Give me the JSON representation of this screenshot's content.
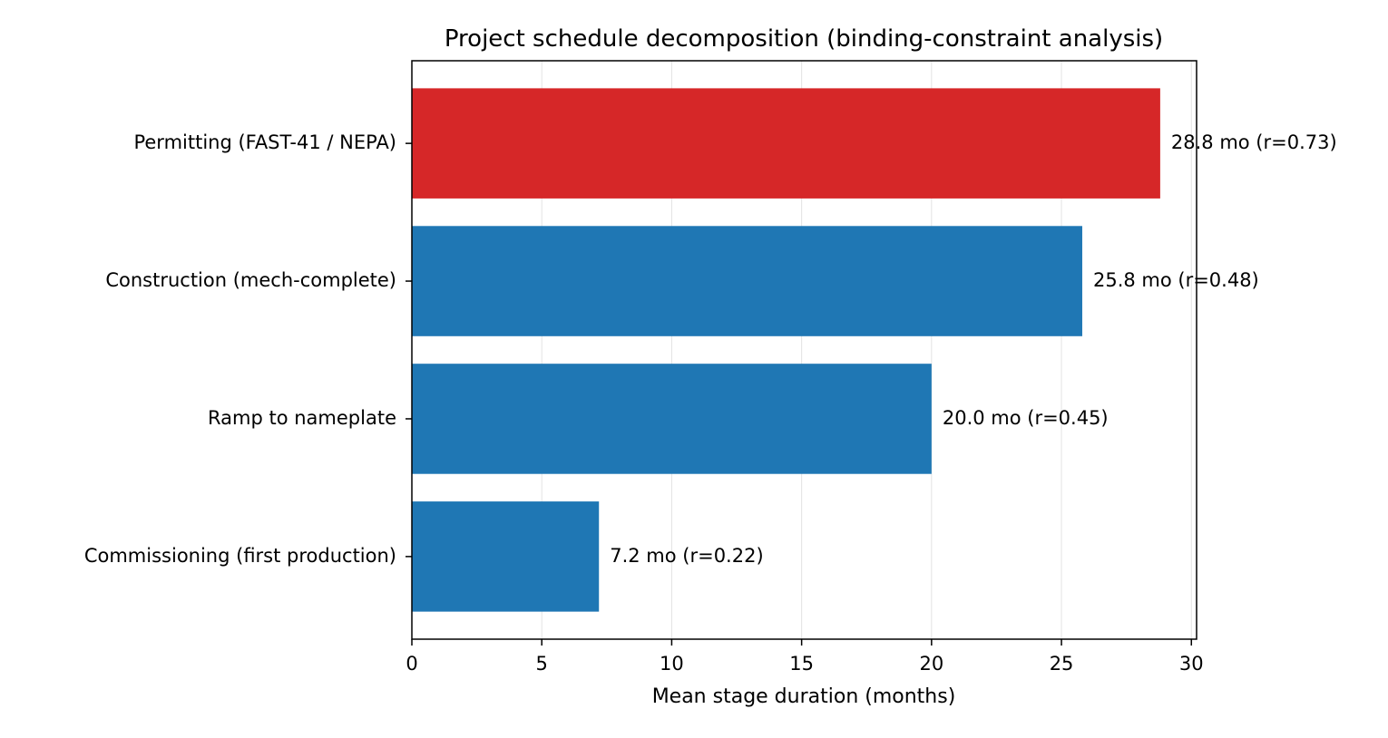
{
  "chart_data": {
    "type": "bar",
    "orientation": "horizontal",
    "title": "Project schedule decomposition (binding-constraint analysis)",
    "xlabel": "Mean stage duration (months)",
    "ylabel": "",
    "xlim": [
      0,
      30.2
    ],
    "xticks": [
      0,
      5,
      10,
      15,
      20,
      25,
      30
    ],
    "grid": {
      "x": true,
      "y": false
    },
    "legend": "none",
    "categories": [
      "Permitting (FAST-41 / NEPA)",
      "Construction (mech-complete)",
      "Ramp to nameplate",
      "Commissioning (first production)"
    ],
    "values": [
      28.8,
      25.8,
      20.0,
      7.2
    ],
    "data_labels": [
      "28.8 mo  (r=0.73)",
      "25.8 mo  (r=0.48)",
      "20.0 mo  (r=0.45)",
      "7.2 mo  (r=0.22)"
    ],
    "colors": [
      "#d62728",
      "#1f77b4",
      "#1f77b4",
      "#1f77b4"
    ],
    "highlight_color": "#d62728",
    "default_color": "#1f77b4"
  }
}
